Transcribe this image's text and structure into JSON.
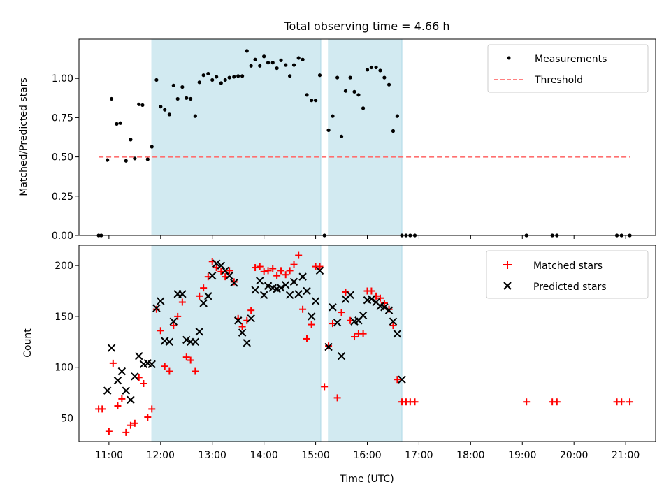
{
  "figure": {
    "title": "Total observing time = 4.66 h",
    "xlabel": "Time (UTC)"
  },
  "colors": {
    "shade": "#add8e6",
    "measurements": "#000000",
    "threshold": "#ff6f6f",
    "matched": "#ff0000",
    "predicted": "#000000"
  },
  "chart_data": [
    {
      "type": "scatter",
      "ylabel": "Matched/Predicted stars",
      "xlim_hours": [
        10.42,
        21.58
      ],
      "ylim": [
        0,
        1.25
      ],
      "yticks": [
        0.0,
        0.25,
        0.5,
        0.75,
        1.0
      ],
      "ytick_labels": [
        "0.00",
        "0.25",
        "0.50",
        "0.75",
        "1.00"
      ],
      "legend_position": "top-right",
      "shaded_intervals_hours": [
        [
          11.83,
          15.1
        ],
        [
          15.25,
          16.67
        ]
      ],
      "series": [
        {
          "name": "Measurements",
          "marker": "dot",
          "x": [
            10.8,
            10.85,
            10.97,
            11.05,
            11.15,
            11.22,
            11.33,
            11.42,
            11.5,
            11.58,
            11.65,
            11.75,
            11.83,
            11.92,
            12.0,
            12.08,
            12.17,
            12.25,
            12.33,
            12.42,
            12.5,
            12.58,
            12.67,
            12.75,
            12.83,
            12.92,
            13.0,
            13.08,
            13.17,
            13.25,
            13.33,
            13.42,
            13.5,
            13.58,
            13.67,
            13.75,
            13.83,
            13.92,
            14.0,
            14.08,
            14.17,
            14.25,
            14.33,
            14.42,
            14.5,
            14.58,
            14.67,
            14.75,
            14.83,
            14.92,
            15.0,
            15.08,
            15.17,
            15.25,
            15.33,
            15.42,
            15.5,
            15.58,
            15.67,
            15.75,
            15.83,
            15.92,
            16.0,
            16.08,
            16.17,
            16.25,
            16.33,
            16.42,
            16.5,
            16.58,
            16.67,
            16.75,
            16.83,
            16.92,
            19.08,
            19.58,
            19.67,
            20.83,
            20.92,
            21.08
          ],
          "y": [
            0.0,
            0.0,
            0.48,
            0.87,
            0.71,
            0.715,
            0.475,
            0.61,
            0.49,
            0.835,
            0.83,
            0.485,
            0.565,
            0.99,
            0.82,
            0.8,
            0.77,
            0.955,
            0.87,
            0.945,
            0.875,
            0.87,
            0.76,
            0.975,
            1.02,
            1.03,
            0.99,
            1.01,
            0.97,
            0.99,
            1.005,
            1.01,
            1.015,
            1.015,
            1.175,
            1.08,
            1.12,
            1.08,
            1.14,
            1.1,
            1.1,
            1.065,
            1.115,
            1.085,
            1.015,
            1.085,
            1.13,
            1.12,
            0.895,
            0.86,
            0.86,
            1.02,
            0.0,
            0.67,
            0.76,
            1.005,
            0.63,
            0.92,
            1.005,
            0.915,
            0.895,
            0.81,
            1.055,
            1.07,
            1.07,
            1.05,
            1.005,
            0.96,
            0.665,
            0.76,
            0.0,
            0.0,
            0.0,
            0.0,
            0.0,
            0.0,
            0.0,
            0.0,
            0.0,
            0.0
          ]
        },
        {
          "name": "Threshold",
          "style": "dashed",
          "x": [
            10.8,
            21.08
          ],
          "y": [
            0.5,
            0.5
          ]
        }
      ]
    },
    {
      "type": "scatter",
      "ylabel": "Count",
      "xlim_hours": [
        10.42,
        21.58
      ],
      "ylim": [
        27,
        220
      ],
      "yticks": [
        50,
        100,
        150,
        200
      ],
      "ytick_labels": [
        "50",
        "100",
        "150",
        "200"
      ],
      "xticks_hours": [
        11,
        12,
        13,
        14,
        15,
        16,
        17,
        18,
        19,
        20,
        21
      ],
      "xtick_labels": [
        "11:00",
        "12:00",
        "13:00",
        "14:00",
        "15:00",
        "16:00",
        "17:00",
        "18:00",
        "19:00",
        "20:00",
        "21:00"
      ],
      "legend_position": "top-right",
      "shaded_intervals_hours": [
        [
          11.83,
          15.1
        ],
        [
          15.25,
          16.67
        ]
      ],
      "series": [
        {
          "name": "Matched stars",
          "marker": "plus",
          "x": [
            10.8,
            10.87,
            11.0,
            11.08,
            11.17,
            11.25,
            11.33,
            11.42,
            11.5,
            11.58,
            11.67,
            11.75,
            11.83,
            11.92,
            12.0,
            12.08,
            12.17,
            12.25,
            12.33,
            12.42,
            12.5,
            12.58,
            12.67,
            12.75,
            12.83,
            12.92,
            13.0,
            13.08,
            13.17,
            13.25,
            13.33,
            13.42,
            13.5,
            13.58,
            13.67,
            13.75,
            13.83,
            13.92,
            14.0,
            14.08,
            14.17,
            14.25,
            14.33,
            14.42,
            14.5,
            14.58,
            14.67,
            14.75,
            14.83,
            14.92,
            15.0,
            15.08,
            15.17,
            15.25,
            15.33,
            15.42,
            15.5,
            15.58,
            15.67,
            15.75,
            15.83,
            15.92,
            16.0,
            16.08,
            16.17,
            16.25,
            16.33,
            16.42,
            16.5,
            16.58,
            16.67,
            16.75,
            16.83,
            16.92,
            19.08,
            19.58,
            19.67,
            20.83,
            20.92,
            21.08
          ],
          "y": [
            59,
            59,
            37,
            104,
            62,
            69,
            36,
            43,
            45,
            90,
            84,
            51,
            59,
            157,
            136,
            101,
            96,
            141,
            150,
            164,
            110,
            107,
            96,
            170,
            178,
            189,
            204,
            198,
            194,
            189,
            195,
            184,
            148,
            140,
            146,
            156,
            198,
            199,
            194,
            195,
            197,
            190,
            195,
            191,
            195,
            201,
            210,
            157,
            128,
            142,
            199,
            199,
            81,
            121,
            143,
            70,
            154,
            174,
            146,
            130,
            133,
            133,
            175,
            175,
            170,
            168,
            163,
            157,
            141,
            88,
            66,
            66,
            66,
            66,
            66,
            66,
            66,
            66,
            66,
            66
          ]
        },
        {
          "name": "Predicted stars",
          "marker": "x",
          "x": [
            10.97,
            11.05,
            11.17,
            11.25,
            11.33,
            11.42,
            11.5,
            11.58,
            11.67,
            11.75,
            11.83,
            11.92,
            12.0,
            12.08,
            12.17,
            12.25,
            12.33,
            12.42,
            12.5,
            12.58,
            12.67,
            12.75,
            12.83,
            12.92,
            13.0,
            13.08,
            13.17,
            13.25,
            13.33,
            13.42,
            13.5,
            13.58,
            13.67,
            13.75,
            13.83,
            13.92,
            14.0,
            14.08,
            14.17,
            14.25,
            14.33,
            14.42,
            14.5,
            14.58,
            14.67,
            14.75,
            14.83,
            14.92,
            15.0,
            15.08,
            15.25,
            15.33,
            15.42,
            15.5,
            15.58,
            15.67,
            15.75,
            15.83,
            15.92,
            16.0,
            16.08,
            16.17,
            16.25,
            16.33,
            16.42,
            16.5,
            16.58,
            16.67
          ],
          "y": [
            77,
            119,
            87,
            96,
            77,
            68,
            91,
            111,
            103,
            104,
            103,
            158,
            165,
            126,
            125,
            145,
            172,
            172,
            127,
            125,
            125,
            135,
            163,
            170,
            190,
            202,
            200,
            195,
            190,
            183,
            146,
            134,
            124,
            148,
            176,
            185,
            171,
            180,
            178,
            177,
            178,
            181,
            171,
            184,
            172,
            189,
            175,
            150,
            165,
            195,
            120,
            159,
            144,
            111,
            167,
            171,
            145,
            146,
            151,
            166,
            167,
            164,
            160,
            159,
            156,
            145,
            133,
            88
          ]
        }
      ]
    }
  ]
}
